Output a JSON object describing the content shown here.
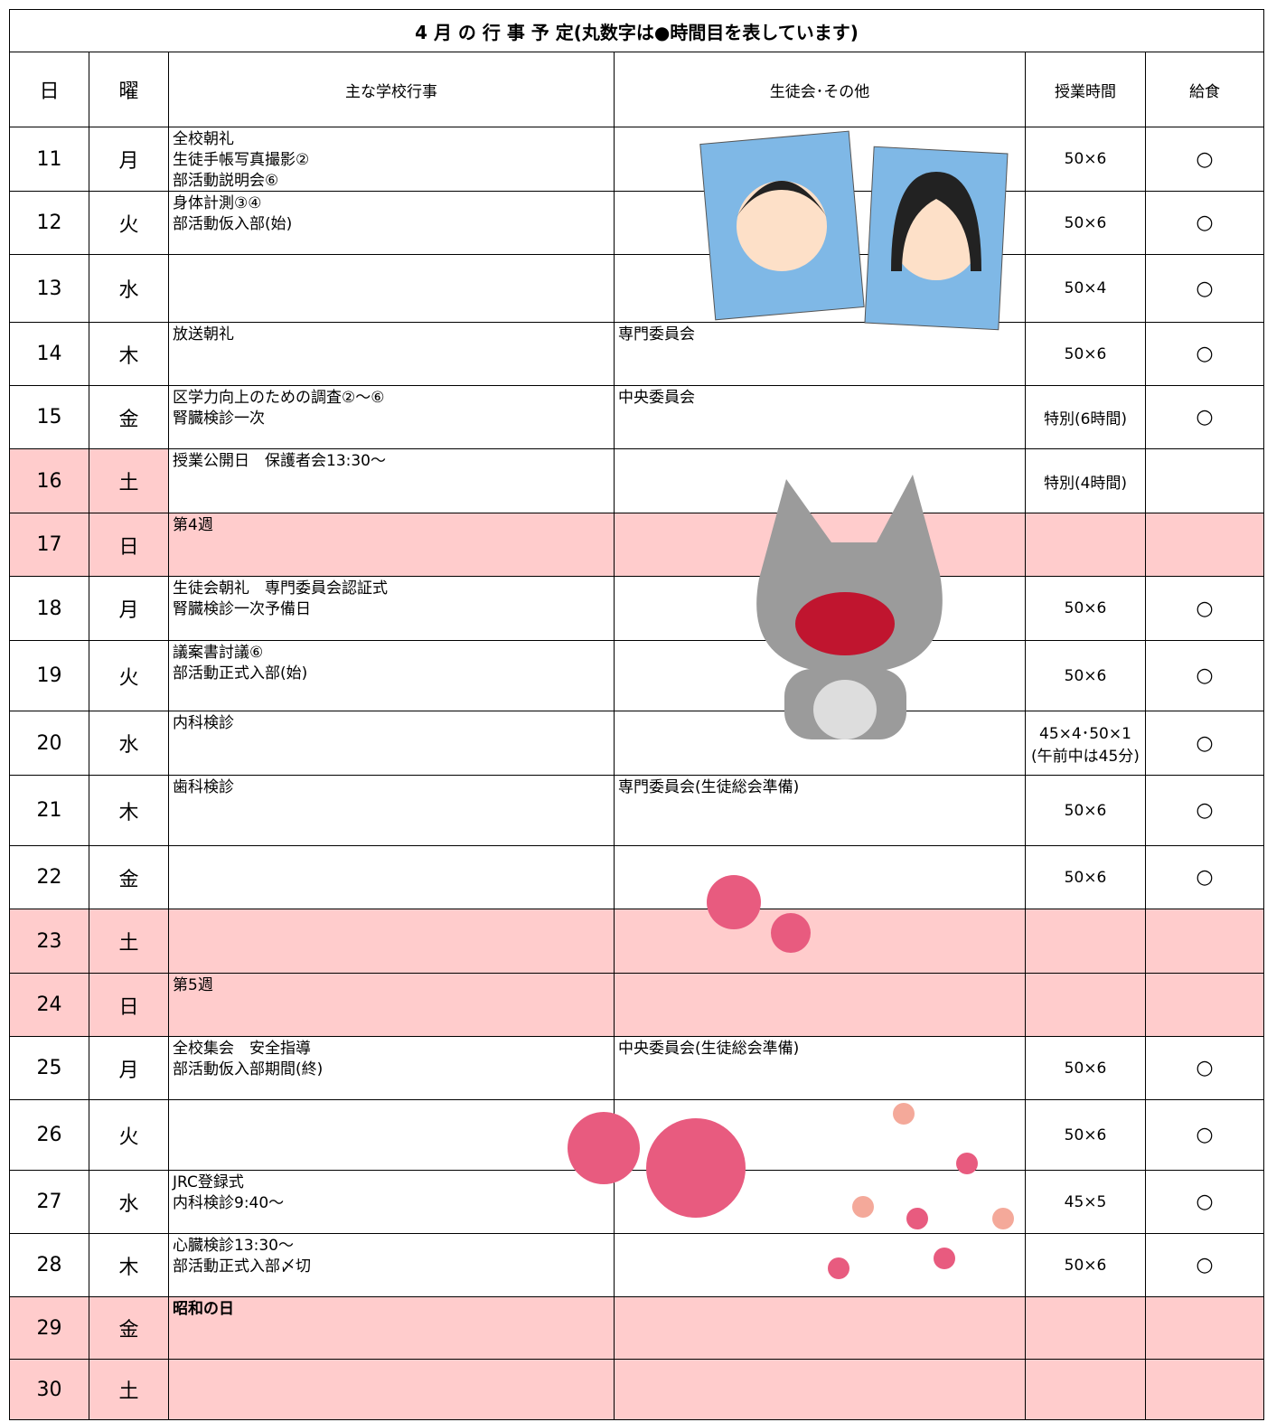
{
  "header": {
    "title": "4 月 の 行 事 予 定(丸数字は●時間目を表しています)",
    "columns": [
      "日",
      "曜",
      "主な学校行事",
      "生徒会･その他",
      "授業時間",
      "給食"
    ]
  },
  "table": {
    "rows": [
      {
        "day": 11,
        "weekday": "月",
        "events": [
          "全校朝礼",
          "生徒手帳写真撮影②",
          "部活動説明会⑥"
        ],
        "hours": [
          "50×6"
        ],
        "lunch": "○"
      },
      {
        "day": 12,
        "weekday": "火",
        "events": [
          "身体計測③④",
          "部活動仮入部(始)"
        ],
        "hours": [
          "50×6"
        ],
        "lunch": "○"
      },
      {
        "day": 13,
        "weekday": "水",
        "hours": [
          "50×4"
        ],
        "lunch": "○"
      },
      {
        "day": 14,
        "weekday": "木",
        "events": [
          "放送朝礼"
        ],
        "council": "専門委員会",
        "hours": [
          "50×6"
        ],
        "lunch": "○"
      },
      {
        "day": 15,
        "weekday": "金",
        "events": [
          "区学力向上のための調査②～⑥",
          "腎臓検診一次"
        ],
        "council": "中央委員会",
        "hours": [
          "特別(6時間)"
        ],
        "lunch": "○"
      },
      {
        "day": 16,
        "weekday": "土",
        "events": [
          "授業公開日　保護者会13:30～"
        ],
        "hours": [
          "特別(4時間)"
        ]
      },
      {
        "day": 17,
        "weekday": "日",
        "events": [
          "第4週"
        ]
      },
      {
        "day": 18,
        "weekday": "月",
        "events": [
          "生徒会朝礼　専門委員会認証式",
          "腎臓検診一次予備日"
        ],
        "hours": [
          "50×6"
        ],
        "lunch": "○"
      },
      {
        "day": 19,
        "weekday": "火",
        "events": [
          "議案書討議⑥",
          "部活動正式入部(始)"
        ],
        "hours": [
          "50×6"
        ],
        "lunch": "○"
      },
      {
        "day": 20,
        "weekday": "水",
        "events": [
          "内科検診"
        ],
        "hours": [
          "45×4･50×1",
          "(午前中は45分)"
        ],
        "lunch": "○"
      },
      {
        "day": 21,
        "weekday": "木",
        "events": [
          "歯科検診"
        ],
        "council": "専門委員会(生徒総会準備)",
        "hours": [
          "50×6"
        ],
        "lunch": "○"
      },
      {
        "day": 22,
        "weekday": "金",
        "hours": [
          "50×6"
        ],
        "lunch": "○"
      },
      {
        "day": 23,
        "weekday": "土"
      },
      {
        "day": 24,
        "weekday": "日",
        "events": [
          "第5週"
        ]
      },
      {
        "day": 25,
        "weekday": "月",
        "events": [
          "全校集会　安全指導",
          "部活動仮入部期間(終)"
        ],
        "council": "中央委員会(生徒総会準備)",
        "hours": [
          "50×6"
        ],
        "lunch": "○"
      },
      {
        "day": 26,
        "weekday": "火",
        "hours": [
          "50×6"
        ],
        "lunch": "○"
      },
      {
        "day": 27,
        "weekday": "水",
        "events": [
          "JRC登録式",
          "内科検診9:40～"
        ],
        "hours": [
          "45×5"
        ],
        "lunch": "○"
      },
      {
        "day": 28,
        "weekday": "木",
        "events": [
          "心臓検診13:30～",
          "部活動正式入部〆切"
        ],
        "hours": [
          "50×6"
        ],
        "lunch": "○"
      },
      {
        "day": 29,
        "weekday": "金",
        "events": [
          "昭和の日"
        ]
      },
      {
        "day": 30,
        "weekday": "土"
      }
    ]
  }
}
